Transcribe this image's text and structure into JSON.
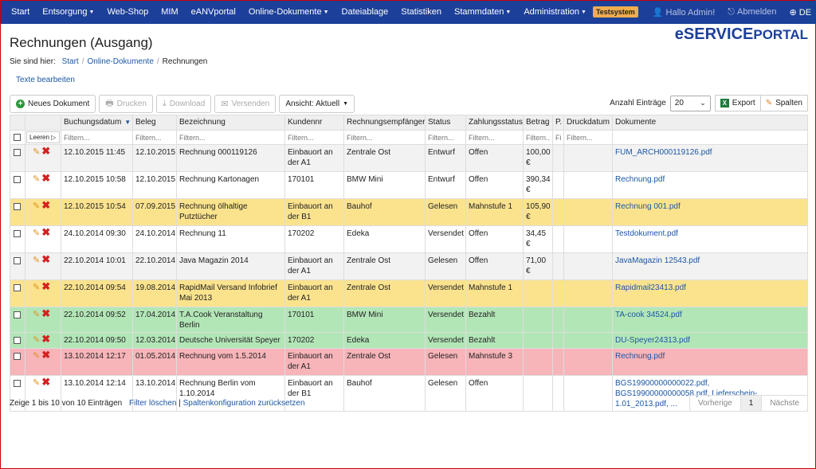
{
  "nav": {
    "items": [
      "Start",
      "Entsorgung",
      "Web-Shop",
      "MIM",
      "eANVportal",
      "Online-Dokumente",
      "Dateiablage",
      "Statistiken",
      "Stammdaten",
      "Administration"
    ],
    "dropdown_flags": [
      false,
      true,
      false,
      false,
      false,
      true,
      false,
      false,
      true,
      true
    ],
    "badge": "Testsystem",
    "user": "Hallo Admin!",
    "logout": "Abmelden",
    "lang": "DE"
  },
  "page": {
    "title": "Rechnungen (Ausgang)",
    "brand_a": "eSERVICE",
    "brand_b": "PORTAL",
    "breadcrumb_label": "Sie sind hier:",
    "breadcrumb": [
      "Start",
      "Online-Dokumente",
      "Rechnungen"
    ],
    "edit_texts": "Texte bearbeiten"
  },
  "toolbar": {
    "new_doc": "Neues Dokument",
    "print": "Drucken",
    "download": "Download",
    "send": "Versenden",
    "view": "Ansicht: Aktuell",
    "count_label": "Anzahl Einträge",
    "count_value": "20",
    "export": "Export",
    "columns": "Spalten"
  },
  "table": {
    "headers": [
      "",
      "",
      "Buchungsdatum",
      "Beleg",
      "Bezeichnung",
      "Kundennr",
      "Rechnungsempfänger",
      "Status",
      "Zahlungsstatus",
      "Betrag",
      "P.",
      "Druckdatum",
      "Dokumente"
    ],
    "leeren": "Leeren ▷",
    "filter_placeholder": "Filtern...",
    "filter_short": "Filt",
    "rows": [
      {
        "style": "row-alt",
        "h": "tall",
        "c": [
          "12.10.2015 11:45",
          "12.10.2015",
          "Rechnung 000119126",
          "Einbauort an der A1",
          "Zentrale Ost",
          "Entwurf",
          "Offen",
          "100,00 €",
          "",
          "",
          "FUM_ARCH000119126.pdf"
        ]
      },
      {
        "style": "row-default",
        "h": "tall",
        "c": [
          "12.10.2015 10:58",
          "12.10.2015",
          "Rechnung Kartonagen",
          "170101",
          "BMW Mini",
          "Entwurf",
          "Offen",
          "390,34 €",
          "",
          "",
          "Rechnung.pdf"
        ]
      },
      {
        "style": "row-yellow",
        "h": "tall",
        "c": [
          "12.10.2015 10:54",
          "07.09.2015",
          "Rechnung ölhaltige Putztücher",
          "Einbauort an der B1",
          "Bauhof",
          "Gelesen",
          "Mahnstufe 1",
          "105,90 €",
          "",
          "",
          "Rechnung 001.pdf"
        ]
      },
      {
        "style": "row-default",
        "h": "tall",
        "c": [
          "24.10.2014 09:30",
          "24.10.2014",
          "Rechnung 11",
          "170202",
          "Edeka",
          "Versendet",
          "Offen",
          "34,45 €",
          "",
          "",
          "Testdokument.pdf"
        ]
      },
      {
        "style": "row-alt",
        "h": "tall",
        "c": [
          "22.10.2014 10:01",
          "22.10.2014",
          "Java Magazin 2014",
          "Einbauort an der A1",
          "Zentrale Ost",
          "Gelesen",
          "Offen",
          "71,00 €",
          "",
          "",
          "JavaMagazin 12543.pdf"
        ]
      },
      {
        "style": "row-yellow",
        "h": "tall",
        "c": [
          "22.10.2014 09:54",
          "19.08.2014",
          "RapidMail Versand Infobrief Mai 2013",
          "Einbauort an der A1",
          "Zentrale Ost",
          "Versendet",
          "Mahnstufe 1",
          "",
          "",
          "",
          "Rapidmail23413.pdf"
        ]
      },
      {
        "style": "row-green",
        "h": "short",
        "c": [
          "22.10.2014 09:52",
          "17.04.2014",
          "T.A.Cook Veranstaltung Berlin",
          "170101",
          "BMW Mini",
          "Versendet",
          "Bezahlt",
          "",
          "",
          "",
          "TA-cook 34524.pdf"
        ]
      },
      {
        "style": "row-green",
        "h": "short",
        "c": [
          "22.10.2014 09:50",
          "12.03.2014",
          "Deutsche Universität Speyer",
          "170202",
          "Edeka",
          "Versendet",
          "Bezahlt",
          "",
          "",
          "",
          "DU-Speyer24313.pdf"
        ]
      },
      {
        "style": "row-red",
        "h": "tall",
        "c": [
          "13.10.2014 12:17",
          "01.05.2014",
          "Rechnung vom 1.5.2014",
          "Einbauort an der A1",
          "Zentrale Ost",
          "Gelesen",
          "Mahnstufe 3",
          "",
          "",
          "",
          "Rechnung.pdf"
        ]
      },
      {
        "style": "row-default",
        "h": "tall",
        "c": [
          "13.10.2014 12:14",
          "13.10.2014",
          "Rechnung Berlin vom 1.10.2014",
          "Einbauort an der B1",
          "Bauhof",
          "Gelesen",
          "Offen",
          "",
          "",
          "",
          "BGS19900000000022.pdf, BGS19900000000058.pdf, Lieferschein-1.01_2013.pdf, ..."
        ]
      }
    ]
  },
  "footer": {
    "info": "Zeige 1 bis 10 von 10 Einträgen",
    "clear_filter": "Filter löschen",
    "sep": "|",
    "reset_cols": "Spaltenkonfiguration zurücksetzen",
    "prev": "Vorherige",
    "page": "1",
    "next": "Nächste"
  }
}
